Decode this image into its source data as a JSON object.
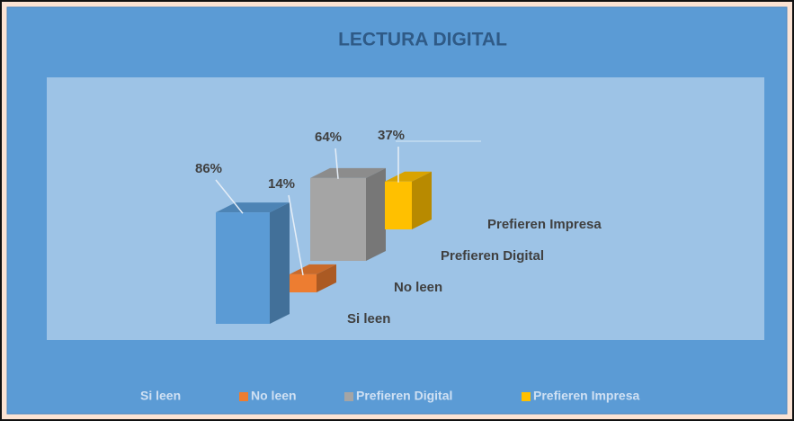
{
  "chart_data": {
    "type": "bar3d",
    "title": "LECTURA DIGITAL",
    "series": [
      {
        "name": "Si leen",
        "color": "#5b9bd5",
        "values": [
          86
        ],
        "value_labels": [
          "86%"
        ]
      },
      {
        "name": "No leen",
        "color": "#ed7d31",
        "values": [
          14
        ],
        "value_labels": [
          "14%"
        ]
      },
      {
        "name": "Prefieren Digital",
        "color": "#a5a5a5",
        "values": [
          64
        ],
        "value_labels": [
          "64%"
        ]
      },
      {
        "name": "Prefieren Impresa",
        "color": "#ffc000",
        "values": [
          37
        ],
        "value_labels": [
          "37%"
        ]
      }
    ],
    "legend": "bottom"
  }
}
